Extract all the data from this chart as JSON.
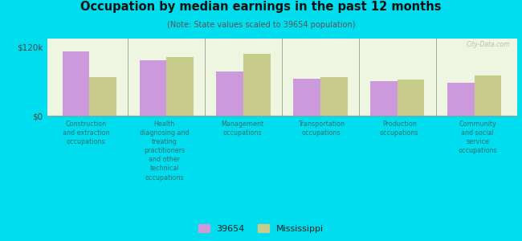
{
  "title": "Occupation by median earnings in the past 12 months",
  "subtitle": "(Note: State values scaled to 39654 population)",
  "categories": [
    "Construction\nand extraction\noccupations",
    "Health\ndiagnosing and\ntreating\npractitioners\nand other\ntechnical\noccupations",
    "Management\noccupations",
    "Transportation\noccupations",
    "Production\noccupations",
    "Community\nand social\nservice\noccupations"
  ],
  "values_39654": [
    113000,
    97000,
    78000,
    65000,
    60000,
    58000
  ],
  "values_mississippi": [
    68000,
    102000,
    108000,
    67000,
    63000,
    70000
  ],
  "color_39654": "#cc99dd",
  "color_mississippi": "#c8cc8a",
  "ylabel_tick": "$120k",
  "y_tick_val": 120000,
  "y0_label": "$0",
  "plot_bg_color": "#eef5e0",
  "outer_background": "#00ddee",
  "legend_label_1": "39654",
  "legend_label_2": "Mississippi",
  "watermark": "City-Data.com",
  "bar_width": 0.35,
  "ylim": [
    0,
    135000
  ],
  "label_color": "#2a7070",
  "title_color": "#111111",
  "subtitle_color": "#555555",
  "tick_color": "#444444",
  "spine_color": "#999999"
}
